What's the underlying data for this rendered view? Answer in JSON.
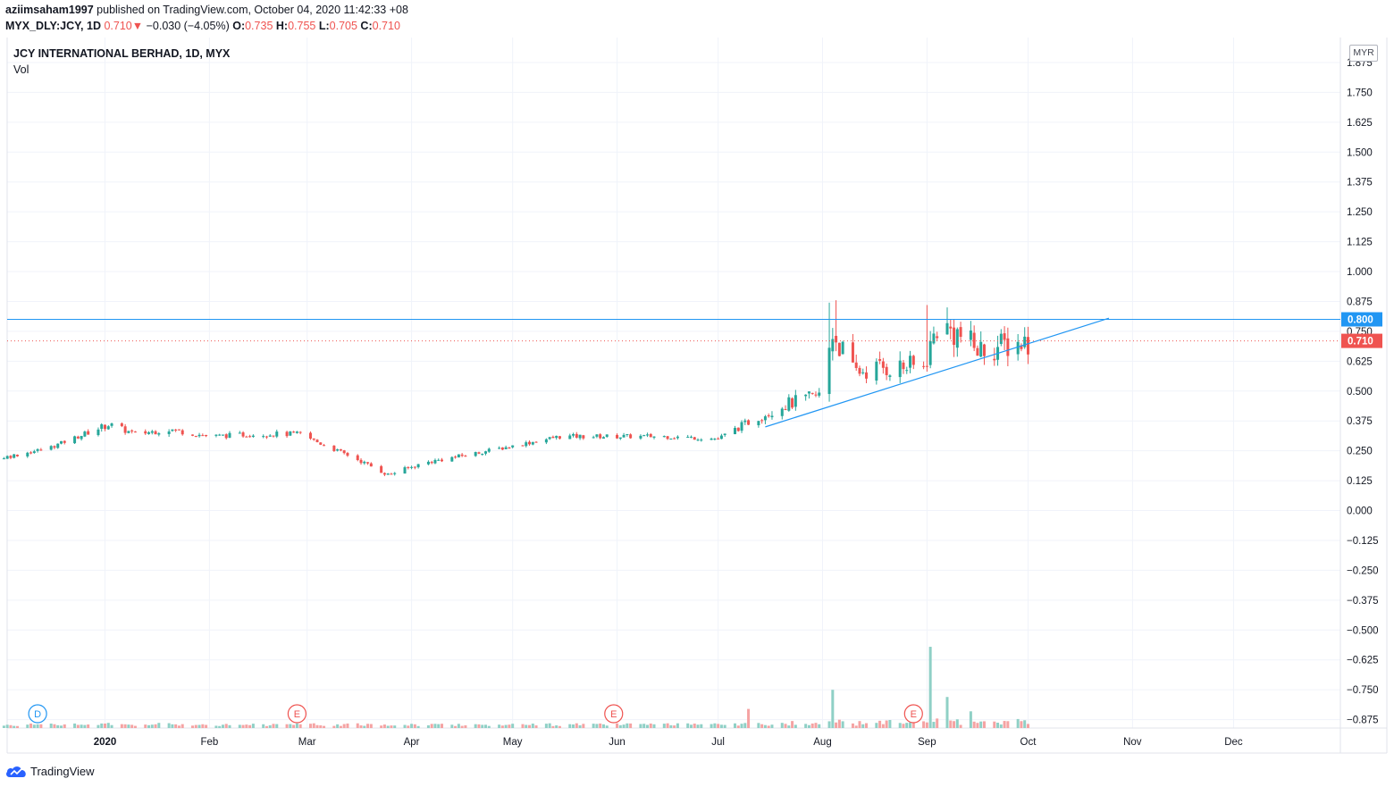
{
  "header": {
    "publisher": "aziimsaham1997",
    "published_text": " published on TradingView.com, October 04, 2020 11:42:33 +08",
    "symbol": "MYX_DLY:JCY, 1D",
    "price": "0.710",
    "arrow": "▼",
    "change": "−0.030 (−4.05%)",
    "o_label": "O:",
    "o_value": "0.735",
    "h_label": "H:",
    "h_value": "0.755",
    "l_label": "L:",
    "l_value": "0.705",
    "c_label": "C:",
    "c_value": "0.710"
  },
  "legend": {
    "title": "JCY INTERNATIONAL BERHAD, 1D, MYX",
    "volume": "Vol"
  },
  "currency_button": "MYR",
  "footer": {
    "brand": "TradingView"
  },
  "colors": {
    "up": "#26a69a",
    "down": "#ef5350",
    "vol_up": "#8fd0c6",
    "vol_down": "#f5a3a3",
    "line": "#2196f3",
    "text": "#131722",
    "grid": "#f0f3fa"
  },
  "chart_data": {
    "type": "candlestick",
    "y_ticks": [
      "1.875",
      "1.750",
      "1.625",
      "1.500",
      "1.375",
      "1.250",
      "1.125",
      "1.000",
      "0.875",
      "0.750",
      "0.625",
      "0.500",
      "0.375",
      "0.250",
      "0.125",
      "0.000",
      "−0.125",
      "−0.250",
      "−0.375",
      "−0.500",
      "−0.625",
      "−0.750",
      "−0.875"
    ],
    "ylim": [
      -0.9,
      1.92
    ],
    "x_labels": [
      "2020",
      "Feb",
      "Mar",
      "Apr",
      "May",
      "Jun",
      "Jul",
      "Aug",
      "Sep",
      "Oct",
      "Nov",
      "Dec"
    ],
    "x_label_dates": [
      "2020-01-01",
      "2020-02-01",
      "2020-03-01",
      "2020-04-01",
      "2020-05-01",
      "2020-06-01",
      "2020-07-01",
      "2020-08-01",
      "2020-09-01",
      "2020-10-01",
      "2020-11-01",
      "2020-12-01"
    ],
    "price_path": [
      [
        "2019-11-01",
        0.18
      ],
      [
        "2019-11-15",
        0.21
      ],
      [
        "2019-12-01",
        0.22
      ],
      [
        "2019-12-15",
        0.26
      ],
      [
        "2020-01-02",
        0.36
      ],
      [
        "2020-01-10",
        0.32
      ],
      [
        "2020-01-20",
        0.34
      ],
      [
        "2020-02-01",
        0.31
      ],
      [
        "2020-02-15",
        0.32
      ],
      [
        "2020-02-28",
        0.32
      ],
      [
        "2020-03-05",
        0.28
      ],
      [
        "2020-03-15",
        0.22
      ],
      [
        "2020-03-25",
        0.15
      ],
      [
        "2020-04-05",
        0.2
      ],
      [
        "2020-04-20",
        0.24
      ],
      [
        "2020-05-01",
        0.27
      ],
      [
        "2020-05-15",
        0.31
      ],
      [
        "2020-06-01",
        0.31
      ],
      [
        "2020-06-15",
        0.31
      ],
      [
        "2020-07-01",
        0.3
      ],
      [
        "2020-07-10",
        0.37
      ],
      [
        "2020-07-20",
        0.44
      ],
      [
        "2020-07-31",
        0.48
      ],
      [
        "2020-08-04",
        0.75
      ],
      [
        "2020-08-10",
        0.58
      ],
      [
        "2020-08-20",
        0.6
      ],
      [
        "2020-08-31",
        0.6
      ],
      [
        "2020-09-04",
        0.77
      ],
      [
        "2020-09-10",
        0.74
      ],
      [
        "2020-09-16",
        0.67
      ],
      [
        "2020-09-24",
        0.69
      ],
      [
        "2020-10-01",
        0.71
      ]
    ],
    "wick_highs": [
      [
        "2020-08-03",
        0.87
      ],
      [
        "2020-08-05",
        0.88
      ],
      [
        "2020-09-01",
        0.86
      ],
      [
        "2020-09-07",
        0.85
      ]
    ],
    "volume_spikes": [
      [
        "2020-09-02",
        0.34
      ],
      [
        "2020-08-04",
        0.16
      ],
      [
        "2020-09-07",
        0.13
      ],
      [
        "2020-07-18",
        0.11
      ],
      [
        "2020-07-10",
        0.08
      ],
      [
        "2020-08-01",
        0.08
      ],
      [
        "2020-09-14",
        0.07
      ]
    ],
    "horizontal_line": {
      "value": 0.8,
      "label": "0.800"
    },
    "last_price": {
      "value": 0.71,
      "label": "0.710"
    },
    "trendline": {
      "start": [
        "2020-07-15",
        0.35
      ],
      "end": [
        "2020-10-25",
        0.805
      ]
    },
    "events": [
      {
        "date": "2019-12-12",
        "letter": "D"
      },
      {
        "date": "2020-02-27",
        "letter": "E"
      },
      {
        "date": "2020-05-31",
        "letter": "E"
      },
      {
        "date": "2020-08-28",
        "letter": "E"
      }
    ]
  }
}
